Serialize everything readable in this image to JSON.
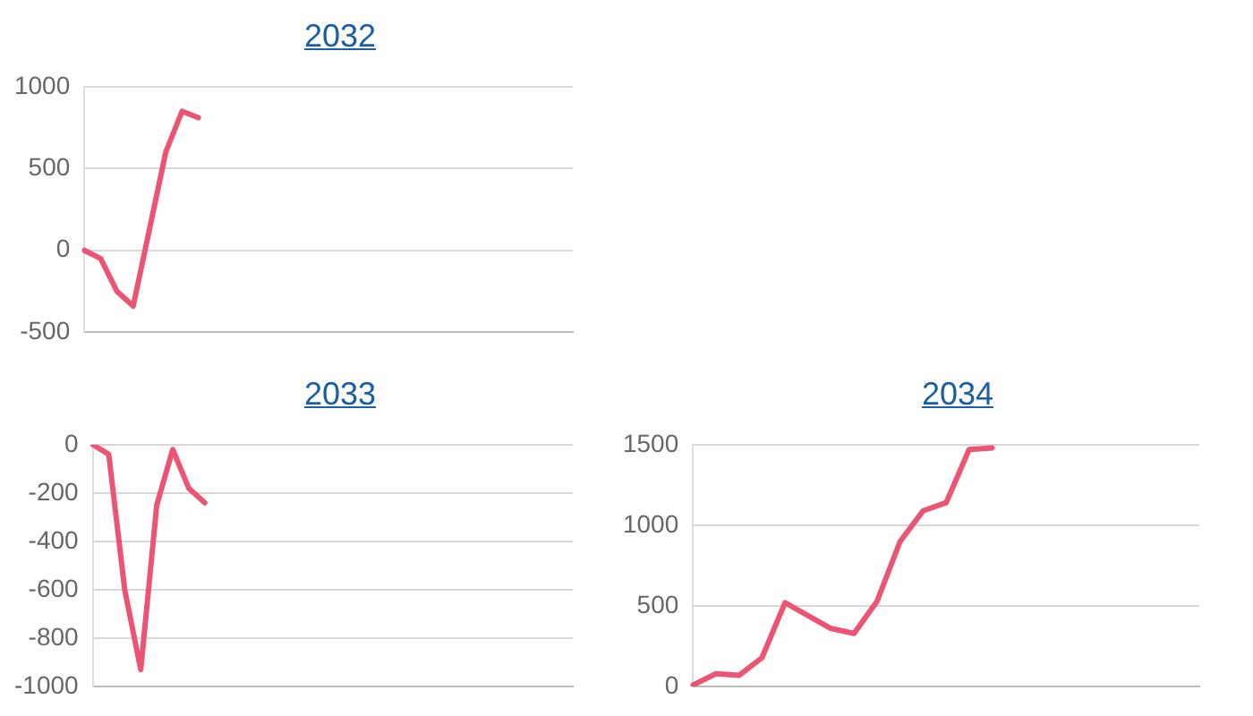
{
  "chart_data": [
    {
      "type": "line",
      "title": "2032",
      "categories": [
        null,
        null,
        null,
        null,
        null,
        null,
        null,
        null,
        null,
        null,
        null,
        null,
        null,
        null,
        null,
        null,
        null,
        null,
        null,
        null,
        null,
        null,
        null,
        null,
        null,
        null,
        null,
        null,
        null,
        null,
        null
      ],
      "series": [
        {
          "color": "#eb5472",
          "values": [
            0,
            -50,
            -250,
            -340,
            130,
            600,
            850,
            810,
            null,
            null,
            null,
            null,
            null,
            null,
            null,
            null,
            null,
            null,
            null,
            null,
            null,
            null,
            null,
            null,
            null,
            null,
            null,
            null,
            null,
            null,
            null
          ]
        }
      ],
      "ylim": [
        -500,
        1000
      ],
      "yticks": [
        -500,
        0,
        500,
        1000
      ],
      "grid": "y",
      "legend": false,
      "marker": "none",
      "line_style": "solid",
      "tick_labels": "y"
    },
    {
      "type": "line",
      "title": "2033",
      "categories": [
        null,
        null,
        null,
        null,
        null,
        null,
        null,
        null,
        null,
        null,
        null,
        null,
        null,
        null,
        null,
        null,
        null,
        null,
        null,
        null,
        null,
        null,
        null,
        null,
        null,
        null,
        null,
        null,
        null,
        null,
        null
      ],
      "series": [
        {
          "color": "#eb5472",
          "values": [
            0,
            -40,
            -600,
            -930,
            -250,
            -20,
            -180,
            -240,
            null,
            null,
            null,
            null,
            null,
            null,
            null,
            null,
            null,
            null,
            null,
            null,
            null,
            null,
            null,
            null,
            null,
            null,
            null,
            null,
            null,
            null,
            null
          ]
        }
      ],
      "ylim": [
        -1000,
        0
      ],
      "yticks": [
        -1000,
        -800,
        -600,
        -400,
        -200,
        0
      ],
      "grid": "y",
      "legend": false,
      "marker": "none",
      "line_style": "solid",
      "tick_labels": "y"
    },
    {
      "type": "line",
      "title": "2034",
      "categories": [
        null,
        null,
        null,
        null,
        null,
        null,
        null,
        null,
        null,
        null,
        null,
        null,
        null,
        null,
        null,
        null,
        null,
        null,
        null,
        null,
        null,
        null,
        null
      ],
      "series": [
        {
          "color": "#eb5472",
          "values": [
            10,
            80,
            70,
            180,
            520,
            440,
            360,
            330,
            530,
            900,
            1090,
            1140,
            1470,
            1480,
            null,
            null,
            null,
            null,
            null,
            null,
            null,
            null,
            null
          ]
        }
      ],
      "ylim": [
        0,
        1500
      ],
      "yticks": [
        0,
        500,
        1000,
        1500
      ],
      "grid": "y",
      "legend": false,
      "marker": "none",
      "line_style": "solid",
      "tick_labels": "y"
    }
  ]
}
